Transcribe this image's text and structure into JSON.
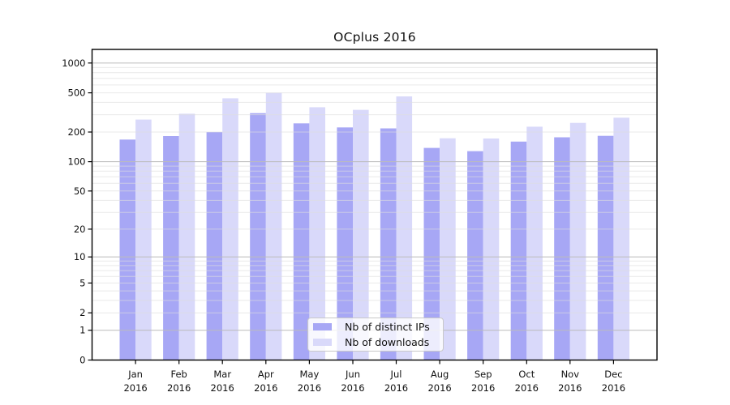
{
  "title": "OCplus 2016",
  "legend": {
    "items": [
      {
        "label": "Nb of distinct IPs",
        "color": "#a7a7f5"
      },
      {
        "label": "Nb of downloads",
        "color": "#d9d9fa"
      }
    ]
  },
  "chart_data": {
    "type": "bar",
    "title": "OCplus 2016",
    "categories": [
      "Jan 2016",
      "Feb 2016",
      "Mar 2016",
      "Apr 2016",
      "May 2016",
      "Jun 2016",
      "Jul 2016",
      "Aug 2016",
      "Sep 2016",
      "Oct 2016",
      "Nov 2016",
      "Dec 2016"
    ],
    "series": [
      {
        "name": "Nb of distinct IPs",
        "color": "#a7a7f5",
        "values": [
          168,
          182,
          200,
          311,
          245,
          223,
          218,
          138,
          128,
          160,
          177,
          183
        ]
      },
      {
        "name": "Nb of downloads",
        "color": "#d9d9fa",
        "values": [
          268,
          307,
          440,
          500,
          357,
          336,
          460,
          173,
          172,
          227,
          248,
          280
        ]
      }
    ],
    "xlabel": "",
    "ylabel": "",
    "y_scale": "log1p",
    "y_ticks": [
      0,
      1,
      2,
      5,
      10,
      20,
      50,
      100,
      200,
      500,
      1000
    ],
    "ylim": [
      0,
      1374
    ],
    "grid": "horizontal major and log-spaced minor lines",
    "legend_position": "lower center"
  },
  "colors": {
    "background": "#ffffff",
    "grid_major": "#bbbbbb",
    "grid_minor": "#dddddd",
    "axis": "#000000",
    "text": "#111111"
  }
}
